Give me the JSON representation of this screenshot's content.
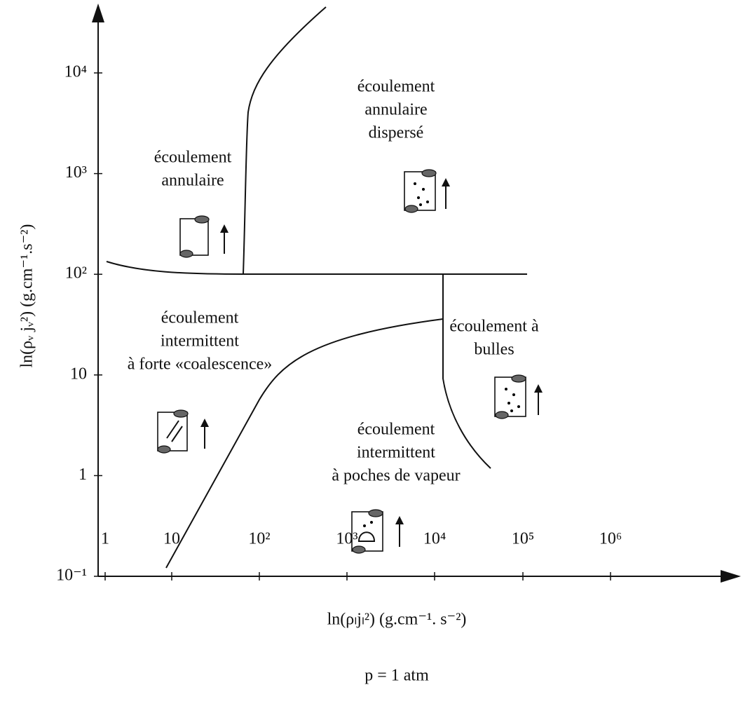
{
  "y_axis": {
    "label": "ln(ρᵥ jᵥ²) (g.cm⁻¹.s⁻²)",
    "ticks": [
      "10⁴",
      "10³",
      "10²",
      "10",
      "1",
      "10⁻¹"
    ]
  },
  "x_axis": {
    "label": "ln(ρₗjₗ²) (g.cm⁻¹. s⁻²)",
    "ticks": [
      "1",
      "10",
      "10²",
      "10³",
      "10⁴",
      "10⁵",
      "10⁶"
    ]
  },
  "regions": [
    {
      "lines": [
        "écoulement",
        "annulaire"
      ]
    },
    {
      "lines": [
        "écoulement",
        "annulaire",
        "dispersé"
      ]
    },
    {
      "lines": [
        "écoulement",
        "intermittent",
        "à forte «coalescence»"
      ]
    },
    {
      "lines": [
        "écoulement à",
        "bulles"
      ]
    },
    {
      "lines": [
        "écoulement",
        "intermittent",
        "à poches de vapeur"
      ]
    }
  ],
  "note": "p = 1 atm"
}
